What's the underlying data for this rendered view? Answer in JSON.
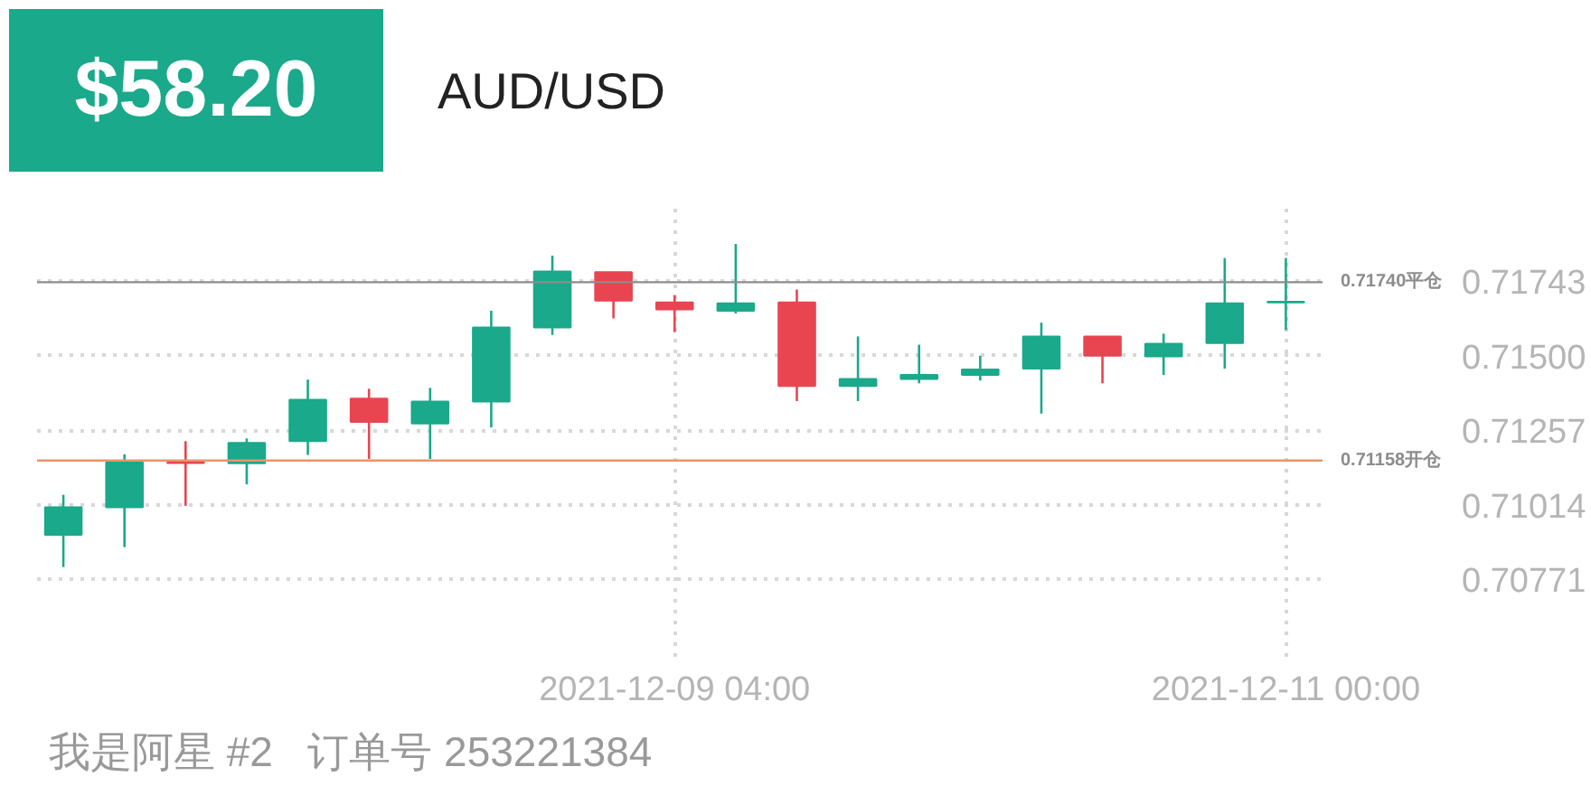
{
  "chart_data": {
    "type": "candlestick",
    "title": "$58.20",
    "subtitle": "AUD/USD",
    "categories": [
      null,
      null,
      null,
      null,
      null,
      null,
      null,
      null,
      null,
      null,
      "2021-12-09 04:00",
      null,
      null,
      null,
      null,
      null,
      null,
      null,
      null,
      null,
      "2021-12-11 00:00"
    ],
    "ohlc": [
      [
        0.70915,
        0.71046,
        0.7081,
        0.71005
      ],
      [
        0.71005,
        0.71178,
        0.70875,
        0.71152
      ],
      [
        0.71152,
        0.71221,
        0.7101,
        0.7115
      ],
      [
        0.71149,
        0.7123,
        0.7108,
        0.71215
      ],
      [
        0.71221,
        0.71422,
        0.71176,
        0.71356
      ],
      [
        0.7136,
        0.71392,
        0.71163,
        0.71284
      ],
      [
        0.71279,
        0.71395,
        0.71163,
        0.7135
      ],
      [
        0.7135,
        0.71647,
        0.71266,
        0.71592
      ],
      [
        0.71592,
        0.71827,
        0.71568,
        0.71775
      ],
      [
        0.71773,
        0.71773,
        0.71622,
        0.7168
      ],
      [
        0.71674,
        0.71698,
        0.71577,
        0.71651
      ],
      [
        0.71647,
        0.71865,
        0.71638,
        0.71671
      ],
      [
        0.71674,
        0.71716,
        0.71352,
        0.71401
      ],
      [
        0.71401,
        0.71563,
        0.71352,
        0.71424
      ],
      [
        0.71424,
        0.71536,
        0.7141,
        0.71437
      ],
      [
        0.71437,
        0.715,
        0.71419,
        0.71455
      ],
      [
        0.71458,
        0.71608,
        0.71311,
        0.71563
      ],
      [
        0.71563,
        0.71563,
        0.7141,
        0.715
      ],
      [
        0.71498,
        0.71572,
        0.71437,
        0.71539
      ],
      [
        0.71541,
        0.71819,
        0.71458,
        0.71671
      ],
      [
        0.71674,
        0.71819,
        0.71584,
        0.71676
      ]
    ],
    "colors": [
      "#1aa98a",
      "#1aa98a",
      "#e84550",
      "#1aa98a",
      "#1aa98a",
      "#e84550",
      "#1aa98a",
      "#1aa98a",
      "#1aa98a",
      "#e84550",
      "#e84550",
      "#1aa98a",
      "#e84550",
      "#1aa98a",
      "#1aa98a",
      "#1aa98a",
      "#1aa98a",
      "#e84550",
      "#1aa98a",
      "#1aa98a",
      "#1aa98a"
    ],
    "ylim": [
      0.70517,
      0.71986
    ],
    "yticks": [
      {
        "value": 0.70771,
        "label": "0.70771"
      },
      {
        "value": 0.71014,
        "label": "0.71014"
      },
      {
        "value": 0.71257,
        "label": "0.71257"
      },
      {
        "value": 0.715,
        "label": "0.71500"
      },
      {
        "value": 0.71743,
        "label": "0.71743"
      }
    ],
    "grid": true,
    "ref_lines": [
      {
        "axis": "y",
        "value": 0.7174,
        "label": "0.71740平仓",
        "color": "#8c8c8c"
      },
      {
        "axis": "y",
        "value": 0.71158,
        "label": "0.71158开仓",
        "color": "#e8956a"
      }
    ],
    "annotations": [
      "我是阿星 #2   订单号 253221384"
    ]
  }
}
